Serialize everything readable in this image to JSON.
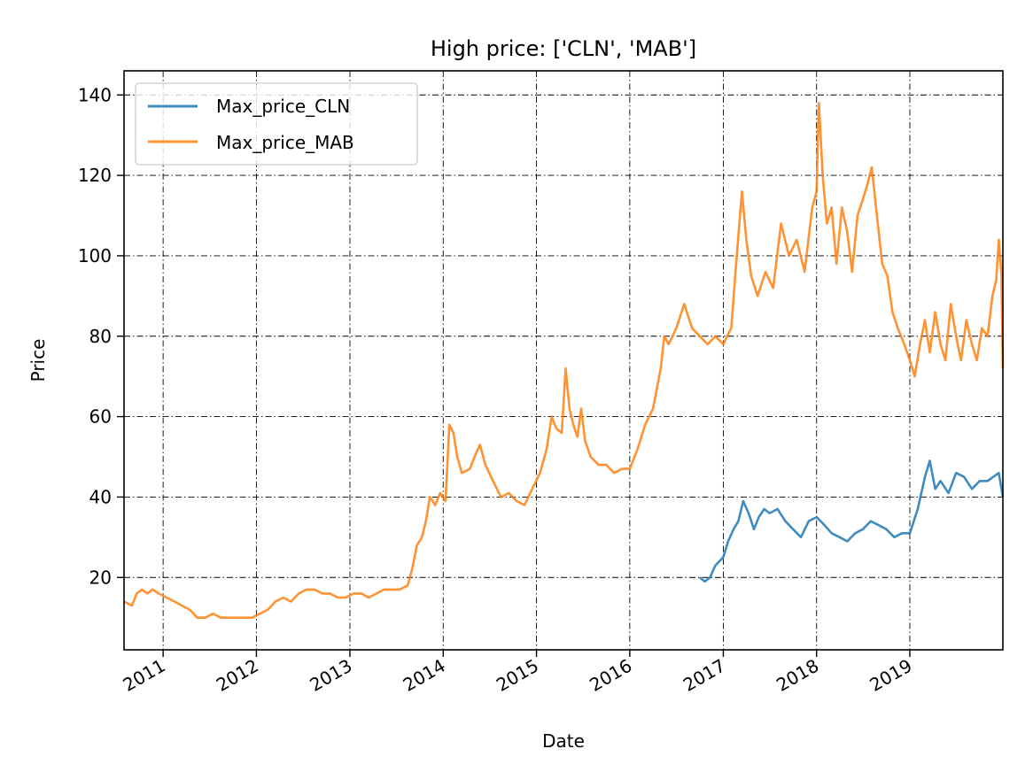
{
  "chart_data": {
    "type": "line",
    "title": "High price: ['CLN', 'MAB']",
    "xlabel": "Date",
    "ylabel": "Price",
    "xlim": [
      "2010-08-01",
      "2019-12-31"
    ],
    "ylim": [
      2,
      146
    ],
    "grid": true,
    "legend_position": "top-left",
    "x_ticks": [
      "2011-01-01",
      "2012-01-01",
      "2013-01-01",
      "2014-01-01",
      "2015-01-01",
      "2016-01-01",
      "2017-01-01",
      "2018-01-01",
      "2019-01-01"
    ],
    "x_tick_labels": [
      "2011",
      "2012",
      "2013",
      "2014",
      "2015",
      "2016",
      "2017",
      "2018",
      "2019"
    ],
    "y_ticks": [
      20,
      40,
      60,
      80,
      100,
      120,
      140
    ],
    "y_tick_labels": [
      "20",
      "40",
      "60",
      "80",
      "100",
      "120",
      "140"
    ],
    "series": [
      {
        "name": "Max_price_CLN",
        "color": "#1f77b4",
        "points": [
          [
            "2016-10-01",
            20
          ],
          [
            "2016-10-20",
            19
          ],
          [
            "2016-11-10",
            20
          ],
          [
            "2016-12-01",
            23
          ],
          [
            "2017-01-01",
            25
          ],
          [
            "2017-01-20",
            29
          ],
          [
            "2017-02-10",
            32
          ],
          [
            "2017-03-01",
            34
          ],
          [
            "2017-03-20",
            39
          ],
          [
            "2017-04-10",
            36
          ],
          [
            "2017-05-01",
            32
          ],
          [
            "2017-05-20",
            35
          ],
          [
            "2017-06-10",
            37
          ],
          [
            "2017-07-01",
            36
          ],
          [
            "2017-08-01",
            37
          ],
          [
            "2017-09-01",
            34
          ],
          [
            "2017-10-01",
            32
          ],
          [
            "2017-11-01",
            30
          ],
          [
            "2017-12-01",
            34
          ],
          [
            "2018-01-01",
            35
          ],
          [
            "2018-02-01",
            33
          ],
          [
            "2018-03-01",
            31
          ],
          [
            "2018-04-01",
            30
          ],
          [
            "2018-05-01",
            29
          ],
          [
            "2018-06-01",
            31
          ],
          [
            "2018-07-01",
            32
          ],
          [
            "2018-08-01",
            34
          ],
          [
            "2018-09-01",
            33
          ],
          [
            "2018-10-01",
            32
          ],
          [
            "2018-11-01",
            30
          ],
          [
            "2018-12-01",
            31
          ],
          [
            "2019-01-01",
            31
          ],
          [
            "2019-02-01",
            37
          ],
          [
            "2019-03-01",
            45
          ],
          [
            "2019-03-20",
            49
          ],
          [
            "2019-04-10",
            42
          ],
          [
            "2019-05-01",
            44
          ],
          [
            "2019-06-01",
            41
          ],
          [
            "2019-07-01",
            46
          ],
          [
            "2019-08-01",
            45
          ],
          [
            "2019-09-01",
            42
          ],
          [
            "2019-10-01",
            44
          ],
          [
            "2019-11-01",
            44
          ],
          [
            "2019-12-15",
            46
          ],
          [
            "2019-12-31",
            40
          ]
        ]
      },
      {
        "name": "Max_price_MAB",
        "color": "#ff7f0e",
        "points": [
          [
            "2010-08-01",
            14
          ],
          [
            "2010-09-01",
            13
          ],
          [
            "2010-09-20",
            16
          ],
          [
            "2010-10-10",
            17
          ],
          [
            "2010-11-01",
            16
          ],
          [
            "2010-11-20",
            17
          ],
          [
            "2010-12-15",
            16
          ],
          [
            "2011-01-15",
            15
          ],
          [
            "2011-02-15",
            14
          ],
          [
            "2011-03-15",
            13
          ],
          [
            "2011-04-15",
            12
          ],
          [
            "2011-05-15",
            10
          ],
          [
            "2011-06-15",
            10
          ],
          [
            "2011-07-15",
            11
          ],
          [
            "2011-08-15",
            10
          ],
          [
            "2011-09-15",
            10
          ],
          [
            "2011-10-15",
            10
          ],
          [
            "2011-11-15",
            10
          ],
          [
            "2011-12-15",
            10
          ],
          [
            "2012-01-15",
            11
          ],
          [
            "2012-02-15",
            12
          ],
          [
            "2012-03-15",
            14
          ],
          [
            "2012-04-15",
            15
          ],
          [
            "2012-05-15",
            14
          ],
          [
            "2012-06-15",
            16
          ],
          [
            "2012-07-15",
            17
          ],
          [
            "2012-08-15",
            17
          ],
          [
            "2012-09-15",
            16
          ],
          [
            "2012-10-15",
            16
          ],
          [
            "2012-11-15",
            15
          ],
          [
            "2012-12-15",
            15
          ],
          [
            "2013-01-15",
            16
          ],
          [
            "2013-02-15",
            16
          ],
          [
            "2013-03-15",
            15
          ],
          [
            "2013-04-15",
            16
          ],
          [
            "2013-05-15",
            17
          ],
          [
            "2013-06-15",
            17
          ],
          [
            "2013-07-15",
            17
          ],
          [
            "2013-08-15",
            18
          ],
          [
            "2013-09-01",
            22
          ],
          [
            "2013-09-20",
            28
          ],
          [
            "2013-10-10",
            30
          ],
          [
            "2013-10-25",
            34
          ],
          [
            "2013-11-10",
            40
          ],
          [
            "2013-12-01",
            38
          ],
          [
            "2013-12-20",
            41
          ],
          [
            "2014-01-10",
            39
          ],
          [
            "2014-01-25",
            58
          ],
          [
            "2014-02-10",
            56
          ],
          [
            "2014-02-25",
            50
          ],
          [
            "2014-03-15",
            46
          ],
          [
            "2014-04-15",
            47
          ],
          [
            "2014-05-10",
            51
          ],
          [
            "2014-05-25",
            53
          ],
          [
            "2014-06-15",
            48
          ],
          [
            "2014-07-15",
            44
          ],
          [
            "2014-08-15",
            40
          ],
          [
            "2014-09-15",
            41
          ],
          [
            "2014-10-15",
            39
          ],
          [
            "2014-11-15",
            38
          ],
          [
            "2014-12-15",
            42
          ],
          [
            "2015-01-15",
            46
          ],
          [
            "2015-02-10",
            52
          ],
          [
            "2015-03-01",
            60
          ],
          [
            "2015-03-20",
            57
          ],
          [
            "2015-04-10",
            56
          ],
          [
            "2015-04-25",
            72
          ],
          [
            "2015-05-10",
            62
          ],
          [
            "2015-05-25",
            58
          ],
          [
            "2015-06-10",
            55
          ],
          [
            "2015-06-25",
            62
          ],
          [
            "2015-07-10",
            54
          ],
          [
            "2015-08-01",
            50
          ],
          [
            "2015-09-01",
            48
          ],
          [
            "2015-10-01",
            48
          ],
          [
            "2015-11-01",
            46
          ],
          [
            "2015-12-01",
            47
          ],
          [
            "2016-01-01",
            47
          ],
          [
            "2016-02-01",
            52
          ],
          [
            "2016-03-01",
            58
          ],
          [
            "2016-04-01",
            62
          ],
          [
            "2016-05-01",
            72
          ],
          [
            "2016-05-15",
            80
          ],
          [
            "2016-06-01",
            78
          ],
          [
            "2016-07-01",
            82
          ],
          [
            "2016-08-01",
            88
          ],
          [
            "2016-09-01",
            82
          ],
          [
            "2016-10-01",
            80
          ],
          [
            "2016-11-01",
            78
          ],
          [
            "2016-12-01",
            80
          ],
          [
            "2017-01-01",
            78
          ],
          [
            "2017-02-01",
            82
          ],
          [
            "2017-02-20",
            98
          ],
          [
            "2017-03-15",
            116
          ],
          [
            "2017-04-01",
            104
          ],
          [
            "2017-04-20",
            95
          ],
          [
            "2017-05-15",
            90
          ],
          [
            "2017-06-15",
            96
          ],
          [
            "2017-07-15",
            92
          ],
          [
            "2017-08-15",
            108
          ],
          [
            "2017-09-15",
            100
          ],
          [
            "2017-10-15",
            104
          ],
          [
            "2017-11-15",
            96
          ],
          [
            "2017-12-15",
            112
          ],
          [
            "2018-01-01",
            116
          ],
          [
            "2018-01-10",
            138
          ],
          [
            "2018-01-25",
            120
          ],
          [
            "2018-02-10",
            108
          ],
          [
            "2018-03-01",
            112
          ],
          [
            "2018-03-20",
            98
          ],
          [
            "2018-04-10",
            112
          ],
          [
            "2018-05-01",
            106
          ],
          [
            "2018-05-20",
            96
          ],
          [
            "2018-06-10",
            110
          ],
          [
            "2018-07-01",
            114
          ],
          [
            "2018-07-20",
            118
          ],
          [
            "2018-08-05",
            122
          ],
          [
            "2018-08-25",
            110
          ],
          [
            "2018-09-15",
            98
          ],
          [
            "2018-10-05",
            95
          ],
          [
            "2018-10-25",
            86
          ],
          [
            "2018-11-15",
            82
          ],
          [
            "2018-12-10",
            78
          ],
          [
            "2019-01-01",
            74
          ],
          [
            "2019-01-20",
            70
          ],
          [
            "2019-02-10",
            78
          ],
          [
            "2019-03-01",
            84
          ],
          [
            "2019-03-20",
            76
          ],
          [
            "2019-04-10",
            86
          ],
          [
            "2019-05-01",
            78
          ],
          [
            "2019-05-20",
            74
          ],
          [
            "2019-06-10",
            88
          ],
          [
            "2019-07-01",
            80
          ],
          [
            "2019-07-20",
            74
          ],
          [
            "2019-08-10",
            84
          ],
          [
            "2019-09-01",
            78
          ],
          [
            "2019-09-20",
            74
          ],
          [
            "2019-10-10",
            82
          ],
          [
            "2019-11-01",
            80
          ],
          [
            "2019-11-20",
            90
          ],
          [
            "2019-12-05",
            94
          ],
          [
            "2019-12-15",
            104
          ],
          [
            "2019-12-25",
            96
          ],
          [
            "2019-12-31",
            72
          ]
        ]
      }
    ]
  }
}
